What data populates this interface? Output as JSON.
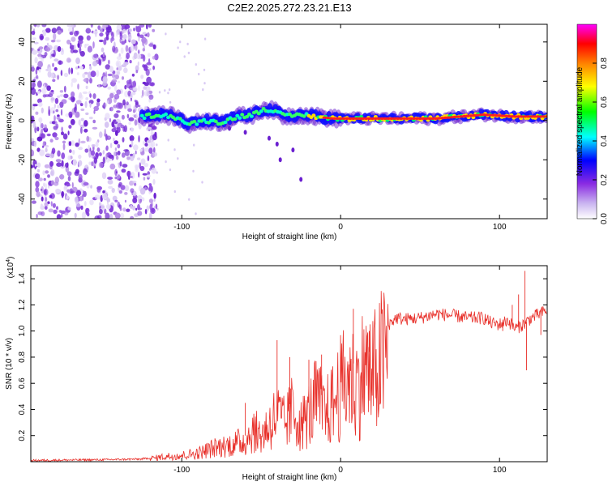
{
  "title": "C2E2.2025.272.23.21.E13",
  "chart_data": [
    {
      "type": "heatmap",
      "title": "C2E2.2025.272.23.21.E13",
      "xlabel": "Height of straight line (km)",
      "ylabel": "Frequency (Hz)",
      "xlim": [
        -195,
        130
      ],
      "ylim": [
        -50,
        49
      ],
      "x_ticks": [
        -100,
        0,
        100
      ],
      "x_tick_labels": [
        "-100",
        "0",
        "100"
      ],
      "y_ticks": [
        -40,
        -20,
        0,
        20,
        40
      ],
      "y_tick_labels": [
        "-40",
        "-20",
        "0",
        "20",
        "40"
      ],
      "noise_region_x": [
        -195,
        -120
      ],
      "signal_band": [
        {
          "x": -125,
          "y": 2
        },
        {
          "x": -115,
          "y": 3
        },
        {
          "x": -105,
          "y": 2
        },
        {
          "x": -95,
          "y": -2
        },
        {
          "x": -85,
          "y": 0
        },
        {
          "x": -75,
          "y": -1
        },
        {
          "x": -65,
          "y": 2
        },
        {
          "x": -55,
          "y": 3
        },
        {
          "x": -48,
          "y": 6
        },
        {
          "x": -42,
          "y": 5
        },
        {
          "x": -35,
          "y": 2
        },
        {
          "x": -25,
          "y": 3
        },
        {
          "x": -15,
          "y": 2
        },
        {
          "x": -5,
          "y": 1
        },
        {
          "x": 10,
          "y": 1
        },
        {
          "x": 30,
          "y": 1
        },
        {
          "x": 60,
          "y": 1
        },
        {
          "x": 90,
          "y": 3
        },
        {
          "x": 110,
          "y": 2
        },
        {
          "x": 130,
          "y": 2
        }
      ],
      "colorbar": {
        "label": "Normalized spectral amplitude",
        "range": [
          0,
          1
        ],
        "ticks": [
          0.0,
          0.2,
          0.4,
          0.6,
          0.8
        ],
        "tick_labels": [
          "0.0",
          "0.2",
          "0.4",
          "0.6",
          "0.8"
        ],
        "colors": [
          "#ffffff",
          "#c9b3f0",
          "#8a2be2",
          "#0000ff",
          "#00ffff",
          "#00ff00",
          "#ffff00",
          "#ff8000",
          "#ff0000",
          "#ff00ff"
        ]
      }
    },
    {
      "type": "line",
      "xlabel": "Height of straight line (km)",
      "ylabel": "SNR (10 * v/v)",
      "scale_label": "(x10",
      "scale_exponent": "4",
      "scale_suffix": ")",
      "xlim": [
        -195,
        130
      ],
      "ylim": [
        0,
        1.5
      ],
      "x_ticks": [
        -100,
        0,
        100
      ],
      "x_tick_labels": [
        "-100",
        "0",
        "100"
      ],
      "y_ticks": [
        0.2,
        0.4,
        0.6,
        0.8,
        1.0,
        1.2,
        1.4
      ],
      "y_tick_labels": [
        "0.2",
        "0.4",
        "0.6",
        "0.8",
        "1.0",
        "1.2",
        "1.4"
      ],
      "line_color": "#e8302a",
      "series": [
        {
          "name": "SNR",
          "points": [
            [
              -195,
              0.01
            ],
            [
              -150,
              0.015
            ],
            [
              -125,
              0.02
            ],
            [
              -110,
              0.05
            ],
            [
              -100,
              0.06
            ],
            [
              -90,
              0.08
            ],
            [
              -80,
              0.13
            ],
            [
              -70,
              0.16
            ],
            [
              -60,
              0.2
            ],
            [
              -55,
              0.3
            ],
            [
              -50,
              0.25
            ],
            [
              -45,
              0.35
            ],
            [
              -40,
              0.45
            ],
            [
              -35,
              0.35
            ],
            [
              -30,
              0.5
            ],
            [
              -25,
              0.35
            ],
            [
              -20,
              0.45
            ],
            [
              -15,
              0.6
            ],
            [
              -10,
              0.45
            ],
            [
              -5,
              0.55
            ],
            [
              0,
              0.7
            ],
            [
              5,
              0.8
            ],
            [
              10,
              0.72
            ],
            [
              15,
              0.9
            ],
            [
              20,
              0.8
            ],
            [
              25,
              0.95
            ],
            [
              30,
              1.05
            ],
            [
              35,
              1.1
            ],
            [
              40,
              1.09
            ],
            [
              50,
              1.1
            ],
            [
              60,
              1.13
            ],
            [
              70,
              1.12
            ],
            [
              80,
              1.1
            ],
            [
              90,
              1.1
            ],
            [
              95,
              1.06
            ],
            [
              100,
              1.05
            ],
            [
              105,
              1.08
            ],
            [
              110,
              1.02
            ],
            [
              115,
              1.05
            ],
            [
              120,
              1.1
            ],
            [
              125,
              1.13
            ],
            [
              130,
              1.16
            ]
          ]
        }
      ],
      "spikes": [
        [
          -60,
          0.45
        ],
        [
          -40,
          0.93
        ],
        [
          -32,
          0.8
        ],
        [
          -20,
          0.78
        ],
        [
          -12,
          0.82
        ],
        [
          8,
          1.17
        ],
        [
          18,
          1.0
        ],
        [
          102,
          1.0
        ],
        [
          108,
          1.2
        ],
        [
          112,
          1.28
        ],
        [
          116,
          1.46
        ],
        [
          117,
          0.7
        ],
        [
          126,
          0.97
        ]
      ]
    }
  ]
}
